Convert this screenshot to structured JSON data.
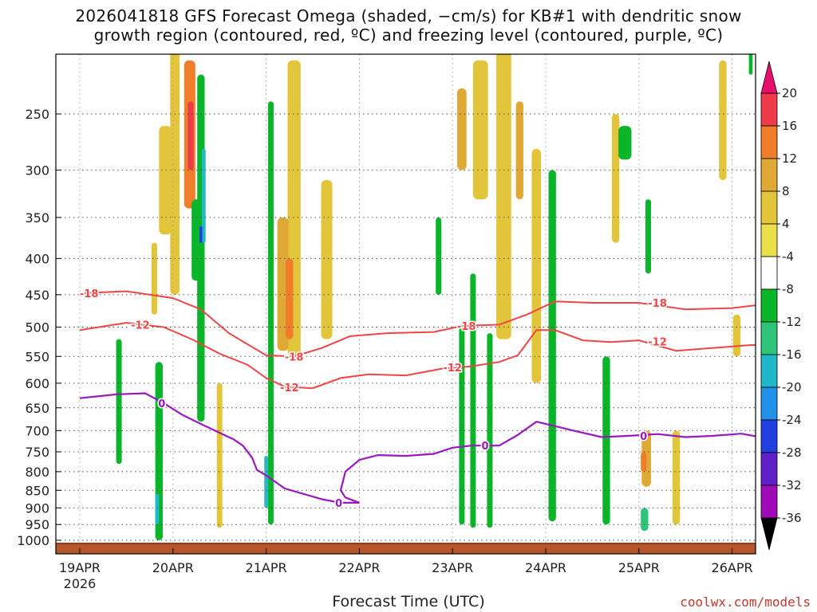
{
  "title_line1": "2026041818 GFS Forecast Omega (shaded, −cm/s) for KB#1 with dendritic snow",
  "title_line2": "growth region (contoured, red, ºC) and freezing level (contoured, purple, ºC)",
  "credit": "coolwx.com/models",
  "chart_data": {
    "type": "heatmap",
    "xlabel": "Forecast Time (UTC)",
    "x_ticks": [
      "19APR",
      "20APR",
      "21APR",
      "22APR",
      "23APR",
      "24APR",
      "25APR",
      "26APR"
    ],
    "x_year": "2026",
    "x_range_days": [
      0.0,
      7.55
    ],
    "y_ticks": [
      250,
      300,
      350,
      400,
      450,
      500,
      550,
      600,
      650,
      700,
      750,
      800,
      850,
      900,
      950,
      1000
    ],
    "ylim_hpa": [
      1020,
      200
    ],
    "grid": true,
    "colorbar": {
      "labels": [
        20,
        16,
        12,
        8,
        4,
        -4,
        -8,
        -12,
        -16,
        -20,
        -24,
        -28,
        -32,
        -36
      ],
      "colors": [
        "#ee3b4b",
        "#f07d2a",
        "#e0a935",
        "#e3c53c",
        "#ece04a",
        "#ffffff",
        "#0bb52a",
        "#2ec47a",
        "#20b8c8",
        "#2090e8",
        "#2040e0",
        "#6020c8",
        "#a00ab8",
        "#a8a8a8"
      ],
      "top_color": "#e8106c",
      "bottom_color": "#000000"
    },
    "dgz_labels": [
      "-18",
      "-12"
    ],
    "dgz_18": [
      [
        0,
        448
      ],
      [
        0.5,
        445
      ],
      [
        1,
        455
      ],
      [
        1.3,
        472
      ],
      [
        1.6,
        510
      ],
      [
        2,
        548
      ],
      [
        2.3,
        550
      ],
      [
        2.6,
        535
      ],
      [
        2.9,
        515
      ],
      [
        3.3,
        510
      ],
      [
        3.8,
        508
      ],
      [
        4.1,
        498
      ],
      [
        4.5,
        496
      ],
      [
        4.8,
        480
      ],
      [
        5.1,
        460
      ],
      [
        5.5,
        462
      ],
      [
        6,
        462
      ],
      [
        6.5,
        472
      ],
      [
        7,
        470
      ],
      [
        7.3,
        465
      ],
      [
        7.55,
        470
      ]
    ],
    "dgz_12": [
      [
        0,
        505
      ],
      [
        0.5,
        493
      ],
      [
        0.9,
        500
      ],
      [
        1.2,
        520
      ],
      [
        1.5,
        545
      ],
      [
        1.8,
        565
      ],
      [
        2.0,
        590
      ],
      [
        2.2,
        607
      ],
      [
        2.5,
        610
      ],
      [
        2.8,
        590
      ],
      [
        3.1,
        583
      ],
      [
        3.5,
        585
      ],
      [
        3.9,
        572
      ],
      [
        4.2,
        568
      ],
      [
        4.5,
        560
      ],
      [
        4.7,
        548
      ],
      [
        4.9,
        505
      ],
      [
        5.1,
        505
      ],
      [
        5.4,
        522
      ],
      [
        5.7,
        525
      ],
      [
        6,
        522
      ],
      [
        6.4,
        540
      ],
      [
        6.8,
        535
      ],
      [
        7.2,
        530
      ],
      [
        7.55,
        530
      ]
    ],
    "freezing_level": [
      [
        0,
        630
      ],
      [
        0.4,
        622
      ],
      [
        0.7,
        620
      ],
      [
        0.9,
        640
      ],
      [
        1.1,
        665
      ],
      [
        1.3,
        685
      ],
      [
        1.5,
        705
      ],
      [
        1.65,
        720
      ],
      [
        1.75,
        735
      ],
      [
        1.85,
        765
      ],
      [
        1.9,
        795
      ],
      [
        2.0,
        810
      ],
      [
        2.2,
        845
      ],
      [
        2.4,
        860
      ],
      [
        2.6,
        875
      ],
      [
        2.8,
        885
      ],
      [
        3.0,
        885
      ],
      [
        2.85,
        870
      ],
      [
        2.8,
        850
      ],
      [
        2.85,
        800
      ],
      [
        3.0,
        770
      ],
      [
        3.2,
        758
      ],
      [
        3.5,
        760
      ],
      [
        3.8,
        755
      ],
      [
        4.0,
        740
      ],
      [
        4.2,
        735
      ],
      [
        4.5,
        735
      ],
      [
        4.7,
        710
      ],
      [
        4.9,
        680
      ],
      [
        5.1,
        690
      ],
      [
        5.3,
        700
      ],
      [
        5.6,
        715
      ],
      [
        5.9,
        712
      ],
      [
        6.2,
        708
      ],
      [
        6.5,
        715
      ],
      [
        6.8,
        712
      ],
      [
        7.1,
        707
      ],
      [
        7.3,
        715
      ],
      [
        7.55,
        715
      ]
    ],
    "omega_blobs": [
      {
        "x": 1.02,
        "p1": 200,
        "p2": 450,
        "w": 0.05,
        "v": 8
      },
      {
        "x": 1.18,
        "p1": 210,
        "p2": 340,
        "w": 0.06,
        "v": 16
      },
      {
        "x": 1.19,
        "p1": 240,
        "p2": 300,
        "w": 0.03,
        "v": 20
      },
      {
        "x": 0.92,
        "p1": 260,
        "p2": 370,
        "w": 0.07,
        "v": 8
      },
      {
        "x": 2.3,
        "p1": 210,
        "p2": 550,
        "w": 0.07,
        "v": 6
      },
      {
        "x": 2.18,
        "p1": 350,
        "p2": 540,
        "w": 0.06,
        "v": 10
      },
      {
        "x": 2.25,
        "p1": 400,
        "p2": 520,
        "w": 0.04,
        "v": 14
      },
      {
        "x": 2.65,
        "p1": 310,
        "p2": 520,
        "w": 0.06,
        "v": 6
      },
      {
        "x": 4.3,
        "p1": 210,
        "p2": 330,
        "w": 0.08,
        "v": 6
      },
      {
        "x": 4.1,
        "p1": 230,
        "p2": 300,
        "w": 0.05,
        "v": 10
      },
      {
        "x": 4.55,
        "p1": 200,
        "p2": 520,
        "w": 0.08,
        "v": 8
      },
      {
        "x": 4.72,
        "p1": 240,
        "p2": 330,
        "w": 0.04,
        "v": 12
      },
      {
        "x": 4.9,
        "p1": 280,
        "p2": 600,
        "w": 0.05,
        "v": 6
      },
      {
        "x": 6.08,
        "p1": 700,
        "p2": 840,
        "w": 0.05,
        "v": 10
      },
      {
        "x": 6.05,
        "p1": 750,
        "p2": 800,
        "w": 0.03,
        "v": 13
      },
      {
        "x": 6.4,
        "p1": 700,
        "p2": 950,
        "w": 0.04,
        "v": 6
      },
      {
        "x": 7.05,
        "p1": 480,
        "p2": 550,
        "w": 0.04,
        "v": 6
      },
      {
        "x": 5.75,
        "p1": 250,
        "p2": 380,
        "w": 0.04,
        "v": 6
      },
      {
        "x": 6.9,
        "p1": 210,
        "p2": 310,
        "w": 0.04,
        "v": 6
      },
      {
        "x": 1.5,
        "p1": 600,
        "p2": 960,
        "w": 0.03,
        "v": 6
      },
      {
        "x": 0.8,
        "p1": 380,
        "p2": 480,
        "w": 0.03,
        "v": 6
      },
      {
        "x": 1.25,
        "p1": 330,
        "p2": 430,
        "w": 0.05,
        "v": -8
      },
      {
        "x": 1.3,
        "p1": 220,
        "p2": 680,
        "w": 0.04,
        "v": -8
      },
      {
        "x": 1.33,
        "p1": 280,
        "p2": 380,
        "w": 0.02,
        "v": -16
      },
      {
        "x": 1.3,
        "p1": 360,
        "p2": 380,
        "w": 0.015,
        "v": -22
      },
      {
        "x": 0.85,
        "p1": 560,
        "p2": 1000,
        "w": 0.04,
        "v": -8
      },
      {
        "x": 0.83,
        "p1": 860,
        "p2": 950,
        "w": 0.02,
        "v": -13
      },
      {
        "x": 0.42,
        "p1": 520,
        "p2": 780,
        "w": 0.03,
        "v": -8
      },
      {
        "x": 2.05,
        "p1": 240,
        "p2": 950,
        "w": 0.03,
        "v": -8
      },
      {
        "x": 2.0,
        "p1": 760,
        "p2": 900,
        "w": 0.02,
        "v": -14
      },
      {
        "x": 3.85,
        "p1": 350,
        "p2": 450,
        "w": 0.03,
        "v": -8
      },
      {
        "x": 4.1,
        "p1": 500,
        "p2": 950,
        "w": 0.03,
        "v": -8
      },
      {
        "x": 4.22,
        "p1": 420,
        "p2": 960,
        "w": 0.03,
        "v": -8
      },
      {
        "x": 4.4,
        "p1": 510,
        "p2": 960,
        "w": 0.03,
        "v": -8
      },
      {
        "x": 5.07,
        "p1": 300,
        "p2": 940,
        "w": 0.04,
        "v": -8
      },
      {
        "x": 5.65,
        "p1": 550,
        "p2": 950,
        "w": 0.04,
        "v": -8
      },
      {
        "x": 5.85,
        "p1": 260,
        "p2": 290,
        "w": 0.07,
        "v": -8
      },
      {
        "x": 6.1,
        "p1": 330,
        "p2": 420,
        "w": 0.03,
        "v": -8
      },
      {
        "x": 6.06,
        "p1": 900,
        "p2": 970,
        "w": 0.04,
        "v": -10
      },
      {
        "x": 7.2,
        "p1": 200,
        "p2": 220,
        "w": 0.02,
        "v": -8
      }
    ]
  }
}
